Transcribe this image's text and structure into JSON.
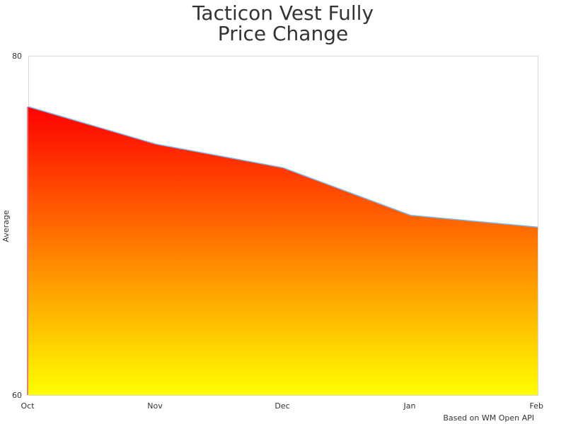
{
  "chart_data": {
    "type": "area",
    "title": "Tacticon Vest Fully Price Change",
    "title_lines": [
      "Tacticon Vest Fully",
      "Price Change"
    ],
    "categories": [
      "Oct",
      "Nov",
      "Dec",
      "Jan",
      "Feb"
    ],
    "series": [
      {
        "name": "Average",
        "values": [
          77.0,
          74.8,
          73.4,
          70.6,
          69.9
        ]
      }
    ],
    "xlabel": "",
    "ylabel": "Average",
    "ylim": [
      60,
      80
    ],
    "yticks": [
      "80",
      "60"
    ],
    "grid": false,
    "legend": "none",
    "fill_gradient": {
      "top": "#ff0000",
      "bottom": "#ffff00"
    },
    "line_color": "#7cb5ec",
    "credit": "Based on WM Open API"
  }
}
